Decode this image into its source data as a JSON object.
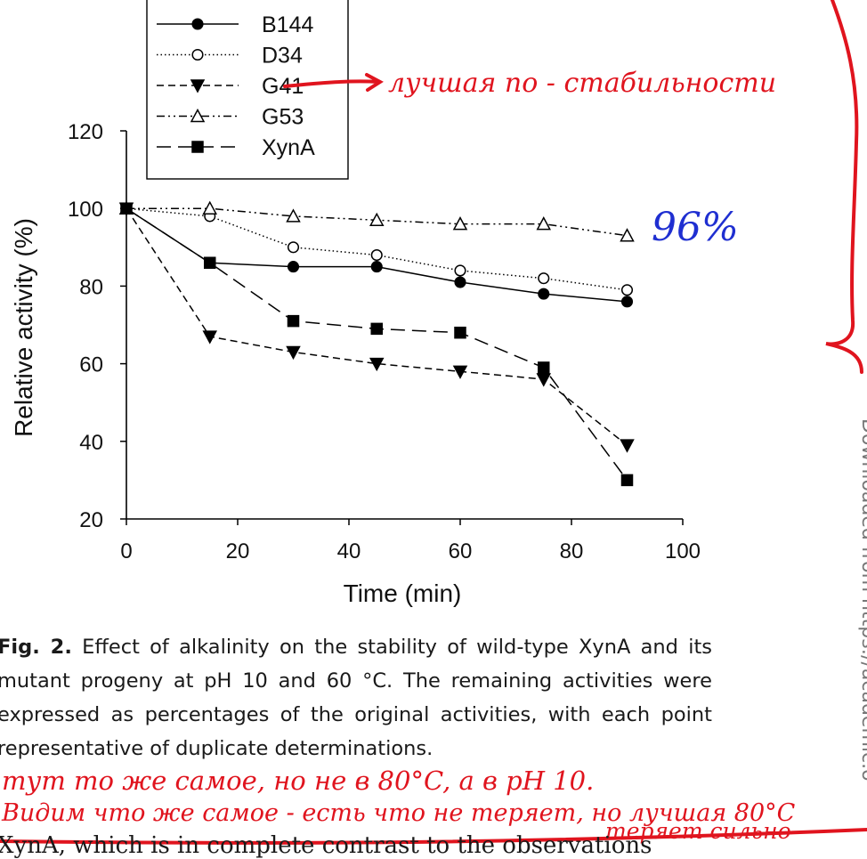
{
  "chart_data": {
    "type": "line",
    "x": [
      0,
      15,
      30,
      45,
      60,
      75,
      90
    ],
    "series": [
      {
        "name": "B144",
        "values": [
          100,
          86,
          85,
          85,
          81,
          78,
          76
        ],
        "line": "solid",
        "marker": "filled-circle"
      },
      {
        "name": "D34",
        "values": [
          100,
          98,
          90,
          88,
          84,
          82,
          79
        ],
        "line": "dotted",
        "marker": "open-circle"
      },
      {
        "name": "G41",
        "values": [
          100,
          67,
          63,
          60,
          58,
          56,
          39
        ],
        "line": "short-dash",
        "marker": "filled-triangle-down"
      },
      {
        "name": "G53",
        "values": [
          100,
          100,
          98,
          97,
          96,
          96,
          93
        ],
        "line": "dash-dot-dot",
        "marker": "open-triangle-up"
      },
      {
        "name": "XynA",
        "values": [
          100,
          86,
          71,
          69,
          68,
          59,
          30
        ],
        "line": "long-dash",
        "marker": "filled-square"
      }
    ],
    "xlabel": "Time (min)",
    "ylabel": "Relative activity (%)",
    "xlim": [
      0,
      100
    ],
    "ylim": [
      20,
      120
    ],
    "xticks": [
      "0",
      "20",
      "40",
      "60",
      "80",
      "100"
    ],
    "yticks": [
      "20",
      "40",
      "60",
      "80",
      "100",
      "120"
    ],
    "grid": false,
    "legend_position": "top-left"
  },
  "caption": {
    "fig_label": "Fig. 2.",
    "text": "Effect of alkalinity on the stability of wild-type XynA and its mutant progeny at pH 10 and 60 °C. The remaining activities were expressed as percentages of the original activities, with each point representative of duplicate determinations."
  },
  "annotations": {
    "g41_note": "лучшая по - стабильности",
    "g53_value": "96%",
    "bottom_line1": "тут то же самое, но не в 80°C, а в pH 10.",
    "bottom_line2": "Видим что же самое - есть что не теряет, но лучшая 80°C",
    "bottom_line3": "теряет сильно",
    "colors": {
      "blue": "#1f2fd1",
      "red": "#e0141e"
    }
  },
  "body_text": "XynA, which is in complete contrast to the observations",
  "sidebar_text": "Downloaded from https://academic.o"
}
